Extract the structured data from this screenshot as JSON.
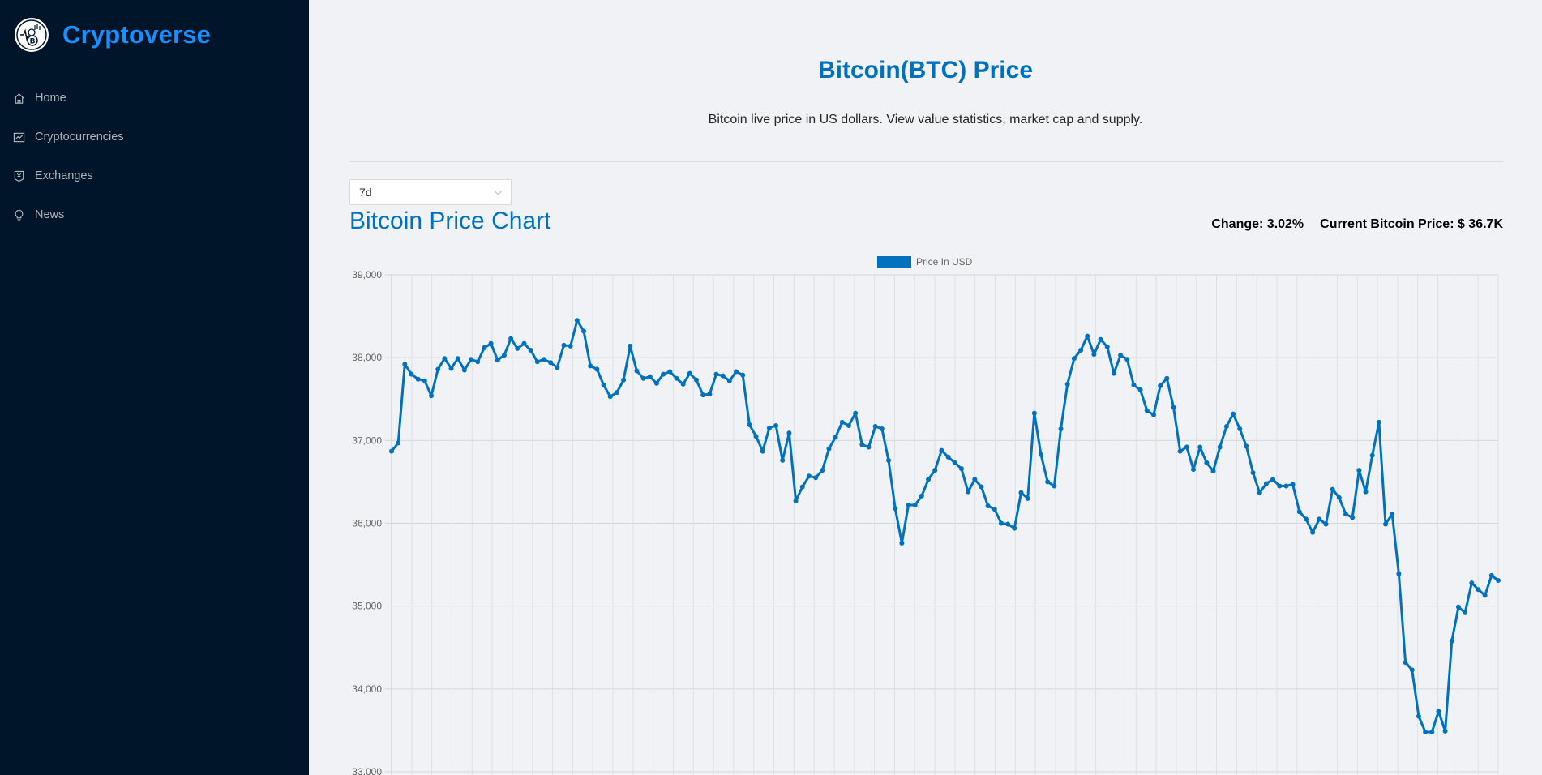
{
  "brand": {
    "name": "Cryptoverse"
  },
  "nav": [
    {
      "label": "Home",
      "icon": "home-icon"
    },
    {
      "label": "Cryptocurrencies",
      "icon": "fund-icon"
    },
    {
      "label": "Exchanges",
      "icon": "money-collect-icon"
    },
    {
      "label": "News",
      "icon": "bulb-icon"
    }
  ],
  "page": {
    "title": "Bitcoin(BTC) Price",
    "subtitle": "Bitcoin live price in US dollars. View value statistics, market cap and supply."
  },
  "timeframe": {
    "selected": "7d"
  },
  "chart_header": {
    "title": "Bitcoin Price Chart",
    "change": "Change: 3.02%",
    "current_price": "Current Bitcoin Price: $ 36.7K"
  },
  "colors": {
    "sidebar": "#001529",
    "brand": "#1890ff",
    "accent": "#0071bd",
    "line": "#0071bd"
  },
  "chart_data": {
    "type": "line",
    "series": [
      {
        "name": "Price In USD",
        "values": [
          36870,
          36970,
          37920,
          37800,
          37740,
          37720,
          37540,
          37860,
          37990,
          37870,
          37990,
          37850,
          37980,
          37950,
          38120,
          38170,
          37970,
          38030,
          38230,
          38110,
          38170,
          38090,
          37950,
          37980,
          37940,
          37880,
          38150,
          38140,
          38450,
          38320,
          37900,
          37860,
          37670,
          37530,
          37580,
          37730,
          38140,
          37840,
          37750,
          37770,
          37690,
          37800,
          37830,
          37750,
          37680,
          37810,
          37730,
          37550,
          37560,
          37800,
          37780,
          37720,
          37830,
          37790,
          37190,
          37050,
          36870,
          37150,
          37180,
          36760,
          37090,
          36270,
          36440,
          36570,
          36550,
          36640,
          36900,
          37040,
          37220,
          37180,
          37330,
          36950,
          36920,
          37170,
          37140,
          36760,
          36180,
          35760,
          36220,
          36220,
          36330,
          36530,
          36640,
          36880,
          36800,
          36730,
          36660,
          36380,
          36530,
          36440,
          36210,
          36170,
          36000,
          35990,
          35940,
          36370,
          36300,
          37330,
          36830,
          36500,
          36450,
          37140,
          37680,
          37990,
          38090,
          38260,
          38040,
          38220,
          38130,
          37810,
          38030,
          37980,
          37670,
          37610,
          37360,
          37310,
          37660,
          37750,
          37400,
          36870,
          36920,
          36650,
          36920,
          36730,
          36630,
          36920,
          37170,
          37320,
          37140,
          36930,
          36610,
          36370,
          36480,
          36530,
          36450,
          36450,
          36470,
          36140,
          36050,
          35890,
          36050,
          35990,
          36410,
          36310,
          36110,
          36070,
          36640,
          36380,
          36820,
          37220,
          35990,
          36110,
          35390,
          34320,
          34230,
          33670,
          33480,
          33480,
          33730,
          33490,
          34580,
          34990,
          34920,
          35280,
          35200,
          35130,
          35370,
          35310
        ]
      }
    ],
    "xlabel": "",
    "ylabel": "",
    "ylim": [
      33000,
      39000
    ],
    "yticks": [
      "39,000",
      "38,000",
      "37,000",
      "36,000",
      "35,000",
      "34,000",
      "33,000"
    ],
    "grid": true,
    "legend": "top-center"
  }
}
